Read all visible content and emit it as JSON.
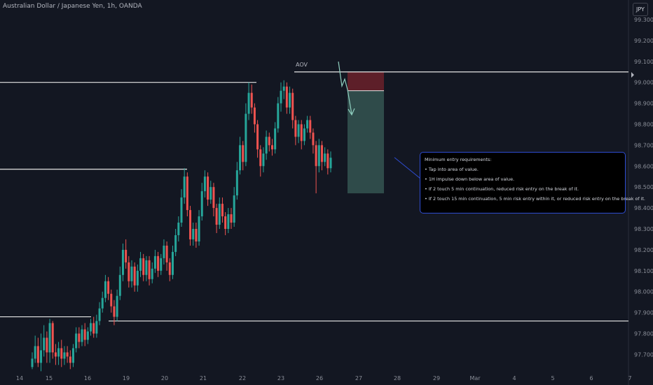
{
  "header": {
    "title": "Australian Dollar / Japanese Yen, 1h, OANDA"
  },
  "currency": "JPY",
  "annotation": {
    "aov_label": "AOV",
    "box_title": "Minimum entry requirements:",
    "box_items": [
      "Tap into area of value.",
      "1H impulse down below area of value.",
      "If 2 touch 5 min continuation, reduced risk entry on the break of it.",
      "If 2 touch 15 min continuation, 5 min risk entry within it, or reduced risk entry on the break of it."
    ]
  },
  "colors": {
    "bull": "#26a69a",
    "bear": "#ef5350",
    "background": "#131722",
    "level_line": "#e6e6e6",
    "stop_zone": "#5d1f29",
    "target_zone": "#2f4b4a",
    "box_border": "#2e4cd1"
  },
  "chart_data": {
    "type": "candlestick",
    "ylim": [
      97.62,
      99.38
    ],
    "y_ticks": [
      "99.300",
      "99.200",
      "99.100",
      "99.000",
      "98.900",
      "98.800",
      "98.700",
      "98.600",
      "98.500",
      "98.400",
      "98.300",
      "98.200",
      "98.100",
      "98.000",
      "97.900",
      "97.800",
      "97.700"
    ],
    "x_ticks": [
      "14",
      "15",
      "16",
      "19",
      "20",
      "21",
      "22",
      "23",
      "26",
      "27",
      "28",
      "29",
      "Mar",
      "4",
      "5",
      "6",
      "7"
    ],
    "levels": [
      {
        "price": 99.05,
        "from": "23",
        "to": "7"
      },
      {
        "price": 99.0,
        "from": "14",
        "to": "22"
      },
      {
        "price": 98.585,
        "from": "14",
        "to": "20"
      },
      {
        "price": 97.88,
        "from": "14",
        "to": "16"
      },
      {
        "price": 97.86,
        "from": "16",
        "to": "7"
      }
    ],
    "position": {
      "entry": 98.96,
      "stop": 99.05,
      "target": 98.47
    },
    "candles": [
      {
        "o": 97.64,
        "c": 97.68,
        "h": 97.71,
        "l": 97.63
      },
      {
        "o": 97.68,
        "c": 97.74,
        "h": 97.79,
        "l": 97.66
      },
      {
        "o": 97.74,
        "c": 97.66,
        "h": 97.78,
        "l": 97.64
      },
      {
        "o": 97.66,
        "c": 97.72,
        "h": 97.8,
        "l": 97.62
      },
      {
        "o": 97.72,
        "c": 97.78,
        "h": 97.84,
        "l": 97.69
      },
      {
        "o": 97.78,
        "c": 97.71,
        "h": 97.81,
        "l": 97.66
      },
      {
        "o": 97.71,
        "c": 97.85,
        "h": 97.87,
        "l": 97.66
      },
      {
        "o": 97.85,
        "c": 97.71,
        "h": 97.86,
        "l": 97.68
      },
      {
        "o": 97.71,
        "c": 97.69,
        "h": 97.75,
        "l": 97.65
      },
      {
        "o": 97.69,
        "c": 97.73,
        "h": 97.76,
        "l": 97.65
      },
      {
        "o": 97.73,
        "c": 97.68,
        "h": 97.77,
        "l": 97.64
      },
      {
        "o": 97.68,
        "c": 97.71,
        "h": 97.74,
        "l": 97.65
      },
      {
        "o": 97.71,
        "c": 97.69,
        "h": 97.74,
        "l": 97.66
      },
      {
        "o": 97.69,
        "c": 97.66,
        "h": 97.72,
        "l": 97.63
      },
      {
        "o": 97.66,
        "c": 97.73,
        "h": 97.75,
        "l": 97.64
      },
      {
        "o": 97.73,
        "c": 97.8,
        "h": 97.83,
        "l": 97.71
      },
      {
        "o": 97.8,
        "c": 97.76,
        "h": 97.83,
        "l": 97.73
      },
      {
        "o": 97.76,
        "c": 97.82,
        "h": 97.84,
        "l": 97.74
      },
      {
        "o": 97.82,
        "c": 97.77,
        "h": 97.85,
        "l": 97.74
      },
      {
        "o": 97.77,
        "c": 97.81,
        "h": 97.83,
        "l": 97.75
      },
      {
        "o": 97.81,
        "c": 97.85,
        "h": 97.87,
        "l": 97.79
      },
      {
        "o": 97.85,
        "c": 97.8,
        "h": 97.88,
        "l": 97.78
      },
      {
        "o": 97.8,
        "c": 97.86,
        "h": 97.89,
        "l": 97.78
      },
      {
        "o": 97.86,
        "c": 97.92,
        "h": 97.95,
        "l": 97.84
      },
      {
        "o": 97.92,
        "c": 97.97,
        "h": 98.0,
        "l": 97.9
      },
      {
        "o": 97.97,
        "c": 98.05,
        "h": 98.08,
        "l": 97.95
      },
      {
        "o": 98.05,
        "c": 97.99,
        "h": 98.07,
        "l": 97.96
      },
      {
        "o": 97.99,
        "c": 97.93,
        "h": 98.01,
        "l": 97.9
      },
      {
        "o": 97.93,
        "c": 97.88,
        "h": 97.96,
        "l": 97.84
      },
      {
        "o": 97.88,
        "c": 97.98,
        "h": 98.01,
        "l": 97.86
      },
      {
        "o": 97.98,
        "c": 98.08,
        "h": 98.12,
        "l": 97.96
      },
      {
        "o": 98.08,
        "c": 98.2,
        "h": 98.23,
        "l": 98.05
      },
      {
        "o": 98.2,
        "c": 98.14,
        "h": 98.25,
        "l": 98.11
      },
      {
        "o": 98.14,
        "c": 98.05,
        "h": 98.17,
        "l": 98.02
      },
      {
        "o": 98.05,
        "c": 98.12,
        "h": 98.15,
        "l": 98.02
      },
      {
        "o": 98.12,
        "c": 98.03,
        "h": 98.14,
        "l": 98.0
      },
      {
        "o": 98.03,
        "c": 98.1,
        "h": 98.13,
        "l": 98.0
      },
      {
        "o": 98.1,
        "c": 98.16,
        "h": 98.19,
        "l": 98.07
      },
      {
        "o": 98.16,
        "c": 98.08,
        "h": 98.18,
        "l": 98.05
      },
      {
        "o": 98.08,
        "c": 98.15,
        "h": 98.17,
        "l": 98.05
      },
      {
        "o": 98.15,
        "c": 98.06,
        "h": 98.17,
        "l": 98.03
      },
      {
        "o": 98.06,
        "c": 98.11,
        "h": 98.14,
        "l": 98.04
      },
      {
        "o": 98.11,
        "c": 98.17,
        "h": 98.2,
        "l": 98.09
      },
      {
        "o": 98.17,
        "c": 98.1,
        "h": 98.19,
        "l": 98.07
      },
      {
        "o": 98.1,
        "c": 98.16,
        "h": 98.18,
        "l": 98.08
      },
      {
        "o": 98.16,
        "c": 98.22,
        "h": 98.25,
        "l": 98.13
      },
      {
        "o": 98.22,
        "c": 98.14,
        "h": 98.24,
        "l": 98.1
      },
      {
        "o": 98.14,
        "c": 98.08,
        "h": 98.16,
        "l": 98.05
      },
      {
        "o": 98.08,
        "c": 98.19,
        "h": 98.22,
        "l": 98.06
      },
      {
        "o": 98.19,
        "c": 98.27,
        "h": 98.3,
        "l": 98.17
      },
      {
        "o": 98.27,
        "c": 98.33,
        "h": 98.36,
        "l": 98.24
      },
      {
        "o": 98.33,
        "c": 98.45,
        "h": 98.49,
        "l": 98.31
      },
      {
        "o": 98.45,
        "c": 98.55,
        "h": 98.59,
        "l": 98.42
      },
      {
        "o": 98.55,
        "c": 98.39,
        "h": 98.57,
        "l": 98.36
      },
      {
        "o": 98.39,
        "c": 98.25,
        "h": 98.41,
        "l": 98.22
      },
      {
        "o": 98.25,
        "c": 98.3,
        "h": 98.33,
        "l": 98.22
      },
      {
        "o": 98.3,
        "c": 98.24,
        "h": 98.33,
        "l": 98.21
      },
      {
        "o": 98.24,
        "c": 98.36,
        "h": 98.39,
        "l": 98.22
      },
      {
        "o": 98.36,
        "c": 98.48,
        "h": 98.52,
        "l": 98.34
      },
      {
        "o": 98.48,
        "c": 98.55,
        "h": 98.58,
        "l": 98.45
      },
      {
        "o": 98.55,
        "c": 98.44,
        "h": 98.57,
        "l": 98.41
      },
      {
        "o": 98.44,
        "c": 98.5,
        "h": 98.53,
        "l": 98.42
      },
      {
        "o": 98.5,
        "c": 98.4,
        "h": 98.52,
        "l": 98.36
      },
      {
        "o": 98.4,
        "c": 98.32,
        "h": 98.42,
        "l": 98.28
      },
      {
        "o": 98.32,
        "c": 98.42,
        "h": 98.45,
        "l": 98.3
      },
      {
        "o": 98.42,
        "c": 98.36,
        "h": 98.45,
        "l": 98.33
      },
      {
        "o": 98.36,
        "c": 98.3,
        "h": 98.38,
        "l": 98.27
      },
      {
        "o": 98.3,
        "c": 98.37,
        "h": 98.4,
        "l": 98.28
      },
      {
        "o": 98.37,
        "c": 98.33,
        "h": 98.4,
        "l": 98.3
      },
      {
        "o": 98.33,
        "c": 98.46,
        "h": 98.5,
        "l": 98.31
      },
      {
        "o": 98.46,
        "c": 98.58,
        "h": 98.62,
        "l": 98.44
      },
      {
        "o": 98.58,
        "c": 98.7,
        "h": 98.74,
        "l": 98.56
      },
      {
        "o": 98.7,
        "c": 98.62,
        "h": 98.72,
        "l": 98.58
      },
      {
        "o": 98.62,
        "c": 98.85,
        "h": 98.9,
        "l": 98.6
      },
      {
        "o": 98.85,
        "c": 98.95,
        "h": 99.0,
        "l": 98.82
      },
      {
        "o": 98.95,
        "c": 98.88,
        "h": 98.99,
        "l": 98.85
      },
      {
        "o": 98.88,
        "c": 98.8,
        "h": 98.9,
        "l": 98.76
      },
      {
        "o": 98.8,
        "c": 98.68,
        "h": 98.82,
        "l": 98.64
      },
      {
        "o": 98.68,
        "c": 98.6,
        "h": 98.7,
        "l": 98.55
      },
      {
        "o": 98.6,
        "c": 98.66,
        "h": 98.69,
        "l": 98.57
      },
      {
        "o": 98.66,
        "c": 98.74,
        "h": 98.77,
        "l": 98.63
      },
      {
        "o": 98.74,
        "c": 98.7,
        "h": 98.76,
        "l": 98.67
      },
      {
        "o": 98.7,
        "c": 98.68,
        "h": 98.73,
        "l": 98.65
      },
      {
        "o": 98.68,
        "c": 98.78,
        "h": 98.81,
        "l": 98.66
      },
      {
        "o": 98.78,
        "c": 98.9,
        "h": 98.93,
        "l": 98.76
      },
      {
        "o": 98.9,
        "c": 98.96,
        "h": 99.0,
        "l": 98.86
      },
      {
        "o": 98.96,
        "c": 98.98,
        "h": 99.01,
        "l": 98.92
      },
      {
        "o": 98.98,
        "c": 98.88,
        "h": 99.0,
        "l": 98.85
      },
      {
        "o": 98.88,
        "c": 98.95,
        "h": 98.98,
        "l": 98.85
      },
      {
        "o": 98.95,
        "c": 98.82,
        "h": 98.97,
        "l": 98.78
      },
      {
        "o": 98.82,
        "c": 98.74,
        "h": 98.84,
        "l": 98.7
      },
      {
        "o": 98.74,
        "c": 98.8,
        "h": 98.82,
        "l": 98.71
      },
      {
        "o": 98.8,
        "c": 98.72,
        "h": 98.82,
        "l": 98.68
      },
      {
        "o": 98.72,
        "c": 98.78,
        "h": 98.8,
        "l": 98.7
      },
      {
        "o": 98.78,
        "c": 98.82,
        "h": 98.84,
        "l": 98.76
      },
      {
        "o": 98.82,
        "c": 98.76,
        "h": 98.84,
        "l": 98.73
      },
      {
        "o": 98.76,
        "c": 98.7,
        "h": 98.78,
        "l": 98.66
      },
      {
        "o": 98.7,
        "c": 98.6,
        "h": 98.72,
        "l": 98.47
      },
      {
        "o": 98.6,
        "c": 98.7,
        "h": 98.73,
        "l": 98.57
      },
      {
        "o": 98.7,
        "c": 98.62,
        "h": 98.72,
        "l": 98.58
      },
      {
        "o": 98.62,
        "c": 98.66,
        "h": 98.69,
        "l": 98.6
      },
      {
        "o": 98.66,
        "c": 98.59,
        "h": 98.68,
        "l": 98.56
      },
      {
        "o": 98.59,
        "c": 98.64,
        "h": 98.67,
        "l": 98.57
      }
    ]
  }
}
